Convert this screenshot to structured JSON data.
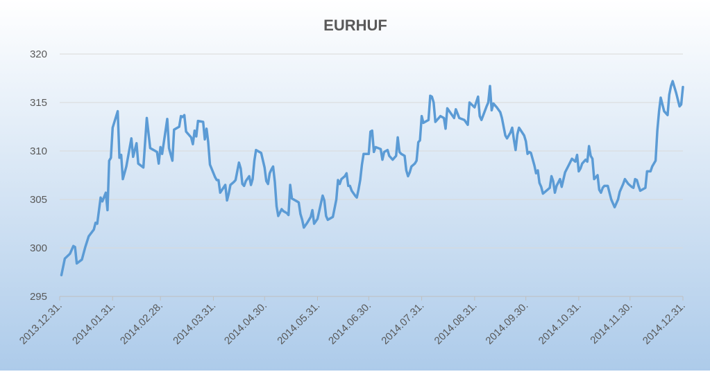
{
  "chart_data": {
    "type": "line",
    "title": "EURHUF",
    "color": "#5b9bd5",
    "grid": true,
    "ylim": [
      295,
      320
    ],
    "yticks": [
      295,
      300,
      305,
      310,
      315,
      320
    ],
    "xlim": [
      "2013.12.31.",
      "2014.12.31."
    ],
    "xticks": [
      "2013.12.31.",
      "2014.01.31.",
      "2014.02.28.",
      "2014.03.31.",
      "2014.04.30.",
      "2014.05.31.",
      "2014.06.30.",
      "2014.07.31.",
      "2014.08.31.",
      "2014.09.30.",
      "2014.10.31.",
      "2014.11.30.",
      "2014.12.31."
    ],
    "x": [
      "2014.01.01.",
      "2014.01.03.",
      "2014.01.06.",
      "2014.01.08.",
      "2014.01.09.",
      "2014.01.10.",
      "2014.01.13.",
      "2014.01.15.",
      "2014.01.17.",
      "2014.01.20.",
      "2014.01.21.",
      "2014.01.22.",
      "2014.01.24.",
      "2014.01.25.",
      "2014.01.27.",
      "2014.01.28.",
      "2014.01.29.",
      "2014.01.30.",
      "2014.01.31.",
      "2014.02.03.",
      "2014.02.04.",
      "2014.02.05.",
      "2014.02.06.",
      "2014.02.08.",
      "2014.02.11.",
      "2014.02.12.",
      "2014.02.14.",
      "2014.02.15.",
      "2014.02.18.",
      "2014.02.20.",
      "2014.02.22.",
      "2014.02.26.",
      "2014.02.27.",
      "2014.02.28.",
      "2014.03.01.",
      "2014.03.04.",
      "2014.03.05.",
      "2014.03.07.",
      "2014.03.08.",
      "2014.03.11.",
      "2014.03.12.",
      "2014.03.13.",
      "2014.03.14.",
      "2014.03.15.",
      "2014.03.18.",
      "2014.03.19.",
      "2014.03.20.",
      "2014.03.21.",
      "2014.03.22.",
      "2014.03.25.",
      "2014.03.26.",
      "2014.03.27.",
      "2014.03.28.",
      "2014.03.29.",
      "2014.04.01.",
      "2014.04.02.",
      "2014.04.03.",
      "2014.04.04.",
      "2014.04.07.",
      "2014.04.08.",
      "2014.04.09.",
      "2014.04.10.",
      "2014.04.12.",
      "2014.04.13.",
      "2014.04.15.",
      "2014.04.16.",
      "2014.04.17.",
      "2014.04.18.",
      "2014.04.19.",
      "2014.04.21.",
      "2014.04.22.",
      "2014.04.23.",
      "2014.04.24.",
      "2014.04.25.",
      "2014.04.28.",
      "2014.04.30.",
      "2014.05.01.",
      "2014.05.02.",
      "2014.05.03.",
      "2014.05.04.",
      "2014.05.05.",
      "2014.05.06.",
      "2014.05.07.",
      "2014.05.08.",
      "2014.05.10.",
      "2014.05.11.",
      "2014.05.13.",
      "2014.05.14.",
      "2014.05.15.",
      "2014.05.16.",
      "2014.05.19.",
      "2014.05.20.",
      "2014.05.21.",
      "2014.05.22.",
      "2014.05.23.",
      "2014.05.25.",
      "2014.05.27.",
      "2014.05.28.",
      "2014.05.29.",
      "2014.05.31.",
      "2014.06.02.",
      "2014.06.03.",
      "2014.06.04.",
      "2014.06.05.",
      "2014.06.06.",
      "2014.06.09.",
      "2014.06.11.",
      "2014.06.12.",
      "2014.06.13.",
      "2014.06.14.",
      "2014.06.16.",
      "2014.06.17.",
      "2014.06.18.",
      "2014.06.19.",
      "2014.06.20.",
      "2014.06.22.",
      "2014.06.23.",
      "2014.06.24.",
      "2014.06.25.",
      "2014.06.26.",
      "2014.06.27.",
      "2014.06.30.",
      "2014.07.01.",
      "2014.07.02.",
      "2014.07.03.",
      "2014.07.04.",
      "2014.07.07.",
      "2014.07.08.",
      "2014.07.09.",
      "2014.07.11.",
      "2014.07.12.",
      "2014.07.14.",
      "2014.07.16.",
      "2014.07.17.",
      "2014.07.18.",
      "2014.07.19.",
      "2014.07.21.",
      "2014.07.22.",
      "2014.07.23.",
      "2014.07.24.",
      "2014.07.25.",
      "2014.07.27.",
      "2014.07.28.",
      "2014.07.29.",
      "2014.07.30.",
      "2014.07.31.",
      "2014.08.01.",
      "2014.08.04.",
      "2014.08.05.",
      "2014.08.06.",
      "2014.08.07.",
      "2014.08.08.",
      "2014.08.11.",
      "2014.08.13.",
      "2014.08.14.",
      "2014.08.15.",
      "2014.08.17.",
      "2014.08.19.",
      "2014.08.20.",
      "2014.08.22.",
      "2014.08.25.",
      "2014.08.27.",
      "2014.08.28.",
      "2014.08.31.",
      "2014.09.02.",
      "2014.09.03.",
      "2014.09.04.",
      "2014.09.07.",
      "2014.09.08.",
      "2014.09.09.",
      "2014.09.10.",
      "2014.09.11.",
      "2014.09.13.",
      "2014.09.15.",
      "2014.09.16.",
      "2014.09.18.",
      "2014.09.19.",
      "2014.09.21.",
      "2014.09.22.",
      "2014.09.23.",
      "2014.09.24.",
      "2014.09.25.",
      "2014.09.26.",
      "2014.09.29.",
      "2014.09.30.",
      "2014.10.01.",
      "2014.10.02.",
      "2014.10.03.",
      "2014.10.05.",
      "2014.10.06.",
      "2014.10.07.",
      "2014.10.08.",
      "2014.10.09.",
      "2014.10.10.",
      "2014.10.12.",
      "2014.10.14.",
      "2014.10.15.",
      "2014.10.16.",
      "2014.10.17.",
      "2014.10.18.",
      "2014.10.20.",
      "2014.10.21.",
      "2014.10.23.",
      "2014.10.25.",
      "2014.10.27.",
      "2014.10.29.",
      "2014.10.30.",
      "2014.10.31.",
      "2014.11.01.",
      "2014.11.02.",
      "2014.11.04.",
      "2014.11.05.",
      "2014.11.06.",
      "2014.11.07.",
      "2014.11.08.",
      "2014.11.09.",
      "2014.11.11.",
      "2014.11.12.",
      "2014.11.13.",
      "2014.11.14.",
      "2014.11.15.",
      "2014.11.17.",
      "2014.11.19.",
      "2014.11.21.",
      "2014.11.23.",
      "2014.11.24.",
      "2014.11.26.",
      "2014.11.27.",
      "2014.11.29.",
      "2014.12.01.",
      "2014.12.02.",
      "2014.12.03.",
      "2014.12.04.",
      "2014.12.05.",
      "2014.12.06.",
      "2014.12.08.",
      "2014.12.09.",
      "2014.12.10.",
      "2014.12.12.",
      "2014.12.13.",
      "2014.12.15.",
      "2014.12.16.",
      "2014.12.17.",
      "2014.12.18.",
      "2014.12.20.",
      "2014.12.22.",
      "2014.12.23.",
      "2014.12.24.",
      "2014.12.25.",
      "2014.12.27.",
      "2014.12.29.",
      "2014.12.30.",
      "2014.12.31."
    ],
    "values": [
      297.2,
      298.9,
      299.4,
      300.2,
      300.1,
      298.4,
      298.8,
      300.1,
      301.2,
      301.9,
      302.6,
      302.5,
      305.2,
      304.8,
      305.7,
      303.9,
      309.0,
      309.3,
      312.4,
      314.1,
      309.3,
      309.6,
      307.1,
      308.4,
      311.3,
      309.4,
      310.8,
      308.7,
      308.3,
      313.4,
      310.3,
      309.9,
      308.7,
      310.4,
      309.7,
      313.3,
      310.3,
      309.0,
      312.2,
      312.5,
      313.6,
      313.5,
      313.7,
      312.0,
      311.4,
      310.7,
      312.1,
      311.5,
      313.1,
      313.0,
      311.2,
      312.3,
      310.9,
      308.6,
      307.3,
      307.0,
      307.0,
      305.7,
      306.5,
      304.9,
      305.6,
      306.5,
      306.8,
      307.0,
      308.8,
      308.2,
      306.6,
      306.4,
      306.9,
      307.4,
      306.5,
      307.1,
      309.0,
      310.1,
      309.8,
      308.3,
      306.9,
      306.6,
      307.7,
      308.1,
      308.4,
      306.8,
      304.3,
      303.3,
      304.0,
      303.8,
      303.6,
      303.4,
      306.5,
      305.1,
      304.8,
      304.7,
      303.5,
      302.9,
      302.1,
      302.6,
      303.2,
      303.9,
      302.5,
      303.0,
      304.6,
      305.4,
      304.9,
      303.3,
      302.9,
      303.2,
      305.0,
      307.0,
      306.6,
      307.1,
      307.4,
      307.7,
      306.4,
      306.4,
      305.9,
      305.4,
      305.2,
      306.0,
      307.0,
      308.6,
      309.7,
      309.7,
      312.0,
      312.1,
      309.9,
      310.4,
      310.2,
      309.1,
      309.9,
      310.1,
      309.5,
      309.1,
      309.5,
      311.4,
      309.9,
      309.7,
      309.5,
      308.0,
      307.4,
      307.8,
      308.4,
      308.7,
      309.0,
      310.9,
      311.1,
      313.6,
      312.9,
      313.2,
      315.7,
      315.6,
      315.0,
      313.0,
      313.6,
      313.4,
      312.3,
      314.4,
      313.9,
      313.4,
      314.3,
      313.4,
      313.2,
      312.7,
      315.0,
      314.5,
      315.6,
      313.6,
      313.2,
      314.6,
      315.0,
      316.7,
      314.2,
      314.9,
      314.5,
      314.0,
      313.4,
      311.6,
      311.3,
      311.9,
      312.4,
      311.2,
      310.1,
      311.7,
      312.4,
      311.6,
      311.0,
      309.7,
      309.9,
      309.8,
      308.5,
      307.7,
      308.0,
      306.7,
      306.3,
      305.6,
      305.9,
      306.2,
      307.4,
      306.9,
      305.7,
      306.4,
      307.1,
      306.3,
      307.8,
      308.5,
      309.2,
      308.9,
      309.6,
      307.9,
      308.2,
      308.7,
      309.1,
      308.9,
      310.5,
      309.5,
      309.2,
      307.1,
      307.5,
      306.0,
      305.7,
      306.2,
      306.4,
      306.4,
      305.0,
      304.2,
      305.0,
      305.8,
      306.6,
      307.1,
      306.6,
      306.3,
      306.2,
      307.1,
      307.0,
      306.4,
      305.9,
      306.1,
      306.2,
      307.9,
      307.9,
      308.4,
      309.0,
      312.1,
      314.1,
      315.5,
      314.1,
      313.7,
      315.8,
      316.7,
      317.2,
      316.0,
      314.6,
      314.8,
      316.6
    ]
  }
}
